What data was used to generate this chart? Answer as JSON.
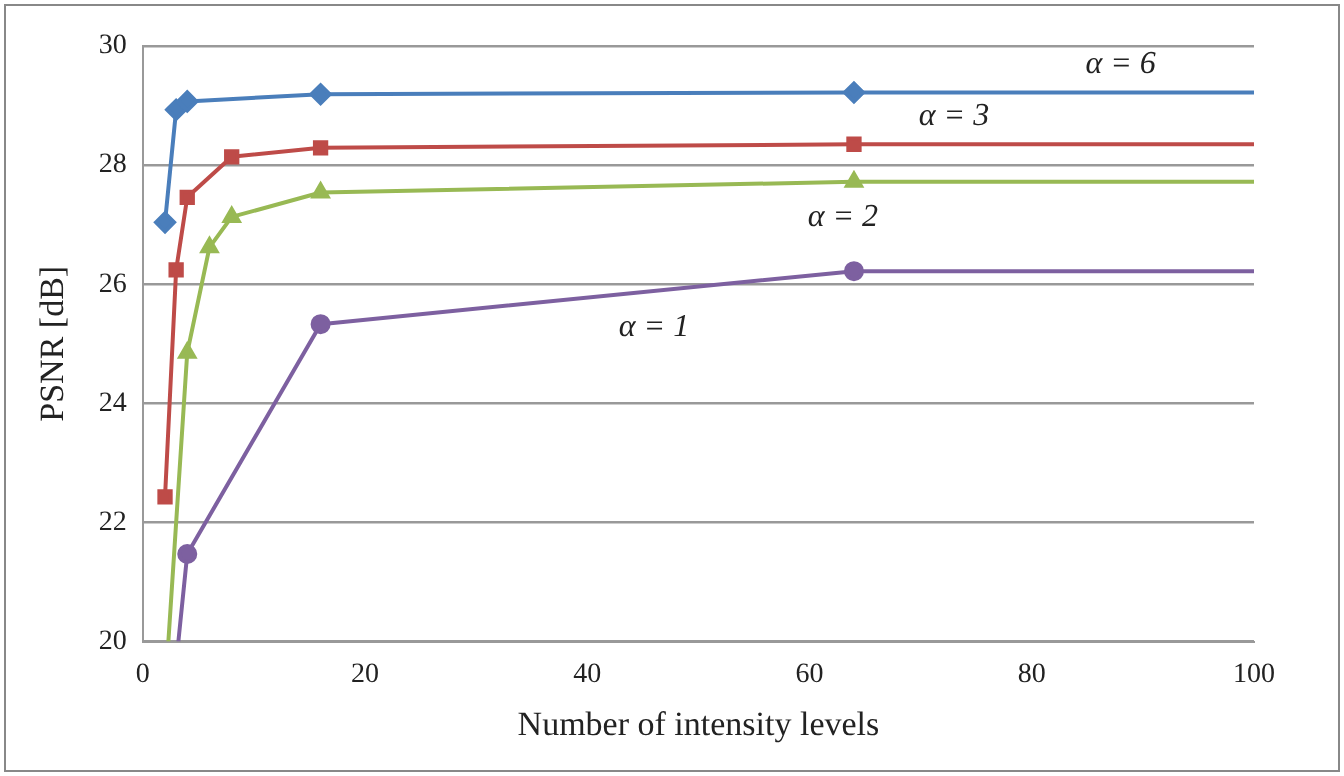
{
  "chart_data": {
    "type": "line",
    "xlabel": "Number of intensity levels",
    "ylabel": "PSNR [dB]",
    "xlim": [
      0,
      100
    ],
    "xticks": [
      0,
      20,
      40,
      60,
      80,
      100
    ],
    "ylim": [
      20,
      30
    ],
    "yticks": [
      20,
      22,
      24,
      26,
      28,
      30
    ],
    "grid": "y",
    "legend": false,
    "line_style": "solid",
    "series": [
      {
        "name": "α = 6",
        "color": "#4a7ebb",
        "marker": "diamond",
        "x": [
          2,
          3,
          4,
          16,
          64,
          100
        ],
        "values": [
          27.04,
          28.93,
          29.07,
          29.19,
          29.22,
          29.22
        ]
      },
      {
        "name": "α = 3",
        "color": "#be4b48",
        "marker": "square",
        "x": [
          2,
          3,
          4,
          8,
          16,
          64,
          100
        ],
        "values": [
          22.43,
          26.24,
          27.46,
          28.14,
          28.29,
          28.35,
          28.35
        ]
      },
      {
        "name": "α = 2",
        "color": "#98b954",
        "marker": "triangle",
        "x": [
          2.3,
          4,
          6,
          8,
          16,
          64,
          100
        ],
        "values": [
          20,
          24.85,
          26.62,
          27.13,
          27.54,
          27.72,
          27.72
        ]
      },
      {
        "name": "α = 1",
        "color": "#7d60a0",
        "marker": "circle",
        "x": [
          3.2,
          4,
          16,
          64,
          100
        ],
        "values": [
          20,
          21.47,
          25.33,
          26.22,
          26.22
        ]
      }
    ]
  }
}
